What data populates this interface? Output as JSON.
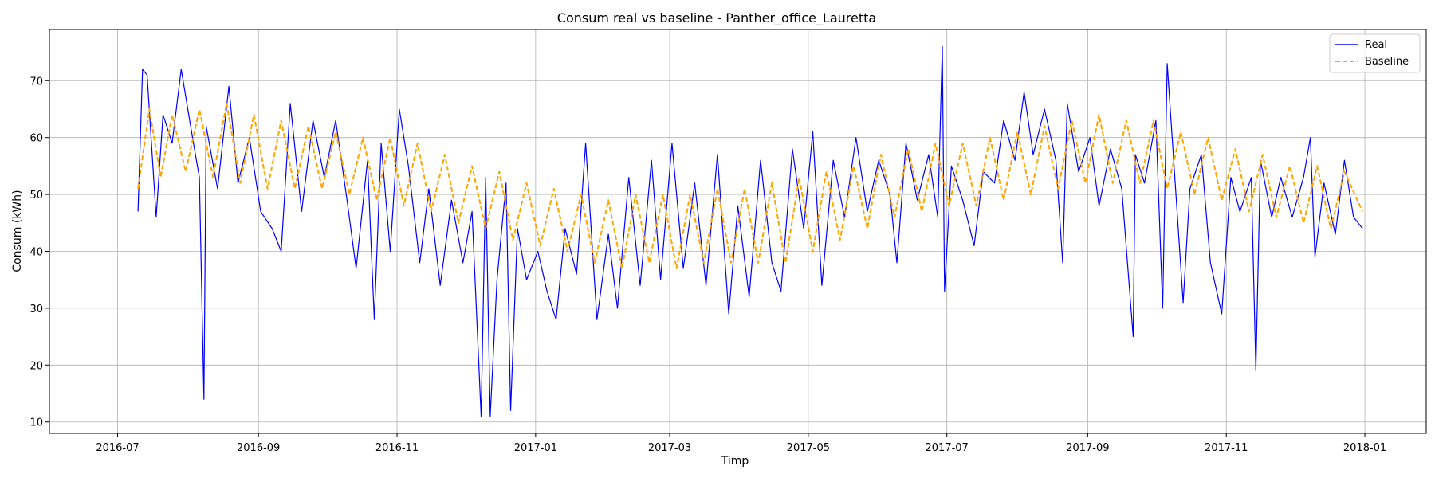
{
  "chart_data": {
    "type": "line",
    "title": "Consum real vs baseline - Panther_office_Lauretta",
    "xlabel": "Timp",
    "ylabel": "Consum (kWh)",
    "xlim": [
      "2016-06-01",
      "2018-01-28"
    ],
    "ylim": [
      8,
      79
    ],
    "x_ticks": [
      "2016-07",
      "2016-09",
      "2016-11",
      "2017-01",
      "2017-03",
      "2017-05",
      "2017-07",
      "2017-09",
      "2017-11",
      "2018-01"
    ],
    "y_ticks": [
      10,
      20,
      30,
      40,
      50,
      60,
      70
    ],
    "grid": true,
    "legend_position": "top-right",
    "series": [
      {
        "name": "Real",
        "color": "#0000ff",
        "style": "solid",
        "points": [
          [
            "2016-07-10",
            47
          ],
          [
            "2016-07-12",
            72
          ],
          [
            "2016-07-14",
            71
          ],
          [
            "2016-07-18",
            46
          ],
          [
            "2016-07-21",
            64
          ],
          [
            "2016-07-25",
            59
          ],
          [
            "2016-07-29",
            72
          ],
          [
            "2016-08-03",
            60
          ],
          [
            "2016-08-06",
            53
          ],
          [
            "2016-08-08",
            14
          ],
          [
            "2016-08-09",
            62
          ],
          [
            "2016-08-14",
            51
          ],
          [
            "2016-08-19",
            69
          ],
          [
            "2016-08-23",
            52
          ],
          [
            "2016-08-28",
            60
          ],
          [
            "2016-09-02",
            47
          ],
          [
            "2016-09-07",
            44
          ],
          [
            "2016-09-11",
            40
          ],
          [
            "2016-09-15",
            66
          ],
          [
            "2016-09-20",
            47
          ],
          [
            "2016-09-25",
            63
          ],
          [
            "2016-09-30",
            53
          ],
          [
            "2016-10-05",
            63
          ],
          [
            "2016-10-10",
            49
          ],
          [
            "2016-10-14",
            37
          ],
          [
            "2016-10-19",
            56
          ],
          [
            "2016-10-22",
            28
          ],
          [
            "2016-10-25",
            59
          ],
          [
            "2016-10-29",
            40
          ],
          [
            "2016-11-02",
            65
          ],
          [
            "2016-11-06",
            55
          ],
          [
            "2016-11-11",
            38
          ],
          [
            "2016-11-15",
            51
          ],
          [
            "2016-11-20",
            34
          ],
          [
            "2016-11-25",
            49
          ],
          [
            "2016-11-30",
            38
          ],
          [
            "2016-12-04",
            47
          ],
          [
            "2016-12-08",
            11
          ],
          [
            "2016-12-10",
            53
          ],
          [
            "2016-12-12",
            11
          ],
          [
            "2016-12-15",
            35
          ],
          [
            "2016-12-19",
            52
          ],
          [
            "2016-12-21",
            12
          ],
          [
            "2016-12-24",
            44
          ],
          [
            "2016-12-28",
            35
          ],
          [
            "2017-01-02",
            40
          ],
          [
            "2017-01-06",
            33
          ],
          [
            "2017-01-10",
            28
          ],
          [
            "2017-01-14",
            44
          ],
          [
            "2017-01-19",
            36
          ],
          [
            "2017-01-23",
            59
          ],
          [
            "2017-01-28",
            28
          ],
          [
            "2017-02-02",
            43
          ],
          [
            "2017-02-06",
            30
          ],
          [
            "2017-02-11",
            53
          ],
          [
            "2017-02-16",
            34
          ],
          [
            "2017-02-21",
            56
          ],
          [
            "2017-02-25",
            35
          ],
          [
            "2017-03-02",
            59
          ],
          [
            "2017-03-07",
            37
          ],
          [
            "2017-03-12",
            52
          ],
          [
            "2017-03-17",
            34
          ],
          [
            "2017-03-22",
            57
          ],
          [
            "2017-03-27",
            29
          ],
          [
            "2017-03-31",
            48
          ],
          [
            "2017-04-05",
            32
          ],
          [
            "2017-04-10",
            56
          ],
          [
            "2017-04-15",
            38
          ],
          [
            "2017-04-19",
            33
          ],
          [
            "2017-04-24",
            58
          ],
          [
            "2017-04-29",
            44
          ],
          [
            "2017-05-03",
            61
          ],
          [
            "2017-05-07",
            34
          ],
          [
            "2017-05-12",
            56
          ],
          [
            "2017-05-17",
            46
          ],
          [
            "2017-05-22",
            60
          ],
          [
            "2017-05-27",
            47
          ],
          [
            "2017-06-01",
            56
          ],
          [
            "2017-06-06",
            50
          ],
          [
            "2017-06-09",
            38
          ],
          [
            "2017-06-13",
            59
          ],
          [
            "2017-06-18",
            49
          ],
          [
            "2017-06-23",
            57
          ],
          [
            "2017-06-27",
            46
          ],
          [
            "2017-06-29",
            76
          ],
          [
            "2017-06-30",
            33
          ],
          [
            "2017-07-03",
            55
          ],
          [
            "2017-07-08",
            49
          ],
          [
            "2017-07-13",
            41
          ],
          [
            "2017-07-17",
            54
          ],
          [
            "2017-07-22",
            52
          ],
          [
            "2017-07-26",
            63
          ],
          [
            "2017-07-31",
            56
          ],
          [
            "2017-08-04",
            68
          ],
          [
            "2017-08-08",
            57
          ],
          [
            "2017-08-13",
            65
          ],
          [
            "2017-08-18",
            56
          ],
          [
            "2017-08-21",
            38
          ],
          [
            "2017-08-23",
            66
          ],
          [
            "2017-08-28",
            54
          ],
          [
            "2017-09-02",
            60
          ],
          [
            "2017-09-06",
            48
          ],
          [
            "2017-09-11",
            58
          ],
          [
            "2017-09-16",
            51
          ],
          [
            "2017-09-21",
            25
          ],
          [
            "2017-09-22",
            57
          ],
          [
            "2017-09-26",
            52
          ],
          [
            "2017-10-01",
            63
          ],
          [
            "2017-10-04",
            30
          ],
          [
            "2017-10-06",
            73
          ],
          [
            "2017-10-09",
            55
          ],
          [
            "2017-10-13",
            31
          ],
          [
            "2017-10-16",
            51
          ],
          [
            "2017-10-21",
            57
          ],
          [
            "2017-10-25",
            38
          ],
          [
            "2017-10-30",
            29
          ],
          [
            "2017-11-03",
            53
          ],
          [
            "2017-11-07",
            47
          ],
          [
            "2017-11-12",
            53
          ],
          [
            "2017-11-14",
            19
          ],
          [
            "2017-11-16",
            56
          ],
          [
            "2017-11-21",
            46
          ],
          [
            "2017-11-25",
            53
          ],
          [
            "2017-11-30",
            46
          ],
          [
            "2017-12-05",
            53
          ],
          [
            "2017-12-08",
            60
          ],
          [
            "2017-12-10",
            39
          ],
          [
            "2017-12-14",
            52
          ],
          [
            "2017-12-19",
            43
          ],
          [
            "2017-12-23",
            56
          ],
          [
            "2017-12-27",
            46
          ],
          [
            "2017-12-31",
            44
          ]
        ]
      },
      {
        "name": "Baseline",
        "color": "#ffa500",
        "style": "dashed",
        "points": [
          [
            "2016-07-10",
            51
          ],
          [
            "2016-07-15",
            65
          ],
          [
            "2016-07-20",
            53
          ],
          [
            "2016-07-25",
            64
          ],
          [
            "2016-07-31",
            54
          ],
          [
            "2016-08-06",
            65
          ],
          [
            "2016-08-12",
            53
          ],
          [
            "2016-08-18",
            66
          ],
          [
            "2016-08-24",
            52
          ],
          [
            "2016-08-30",
            64
          ],
          [
            "2016-09-05",
            51
          ],
          [
            "2016-09-11",
            63
          ],
          [
            "2016-09-17",
            51
          ],
          [
            "2016-09-23",
            62
          ],
          [
            "2016-09-29",
            51
          ],
          [
            "2016-10-05",
            61
          ],
          [
            "2016-10-11",
            50
          ],
          [
            "2016-10-17",
            60
          ],
          [
            "2016-10-23",
            49
          ],
          [
            "2016-10-29",
            60
          ],
          [
            "2016-11-04",
            48
          ],
          [
            "2016-11-10",
            59
          ],
          [
            "2016-11-16",
            47
          ],
          [
            "2016-11-22",
            57
          ],
          [
            "2016-11-28",
            45
          ],
          [
            "2016-12-04",
            55
          ],
          [
            "2016-12-10",
            44
          ],
          [
            "2016-12-16",
            54
          ],
          [
            "2016-12-22",
            42
          ],
          [
            "2016-12-28",
            52
          ],
          [
            "2017-01-03",
            41
          ],
          [
            "2017-01-09",
            51
          ],
          [
            "2017-01-15",
            40
          ],
          [
            "2017-01-21",
            50
          ],
          [
            "2017-01-27",
            38
          ],
          [
            "2017-02-02",
            49
          ],
          [
            "2017-02-08",
            37
          ],
          [
            "2017-02-14",
            50
          ],
          [
            "2017-02-20",
            38
          ],
          [
            "2017-02-26",
            50
          ],
          [
            "2017-03-04",
            37
          ],
          [
            "2017-03-10",
            50
          ],
          [
            "2017-03-16",
            38
          ],
          [
            "2017-03-22",
            51
          ],
          [
            "2017-03-28",
            38
          ],
          [
            "2017-04-03",
            51
          ],
          [
            "2017-04-09",
            38
          ],
          [
            "2017-04-15",
            52
          ],
          [
            "2017-04-21",
            38
          ],
          [
            "2017-04-27",
            53
          ],
          [
            "2017-05-03",
            40
          ],
          [
            "2017-05-09",
            54
          ],
          [
            "2017-05-15",
            42
          ],
          [
            "2017-05-21",
            55
          ],
          [
            "2017-05-27",
            44
          ],
          [
            "2017-06-02",
            57
          ],
          [
            "2017-06-08",
            46
          ],
          [
            "2017-06-14",
            58
          ],
          [
            "2017-06-20",
            47
          ],
          [
            "2017-06-26",
            59
          ],
          [
            "2017-07-02",
            48
          ],
          [
            "2017-07-08",
            59
          ],
          [
            "2017-07-14",
            48
          ],
          [
            "2017-07-20",
            60
          ],
          [
            "2017-07-26",
            49
          ],
          [
            "2017-08-01",
            61
          ],
          [
            "2017-08-07",
            50
          ],
          [
            "2017-08-13",
            62
          ],
          [
            "2017-08-19",
            51
          ],
          [
            "2017-08-25",
            63
          ],
          [
            "2017-08-31",
            52
          ],
          [
            "2017-09-06",
            64
          ],
          [
            "2017-09-12",
            52
          ],
          [
            "2017-09-18",
            63
          ],
          [
            "2017-09-24",
            52
          ],
          [
            "2017-09-30",
            63
          ],
          [
            "2017-10-06",
            51
          ],
          [
            "2017-10-12",
            61
          ],
          [
            "2017-10-18",
            50
          ],
          [
            "2017-10-24",
            60
          ],
          [
            "2017-10-30",
            49
          ],
          [
            "2017-11-05",
            58
          ],
          [
            "2017-11-11",
            47
          ],
          [
            "2017-11-17",
            57
          ],
          [
            "2017-11-23",
            46
          ],
          [
            "2017-11-29",
            55
          ],
          [
            "2017-12-05",
            45
          ],
          [
            "2017-12-11",
            55
          ],
          [
            "2017-12-17",
            44
          ],
          [
            "2017-12-23",
            54
          ],
          [
            "2017-12-31",
            47
          ]
        ]
      }
    ]
  }
}
